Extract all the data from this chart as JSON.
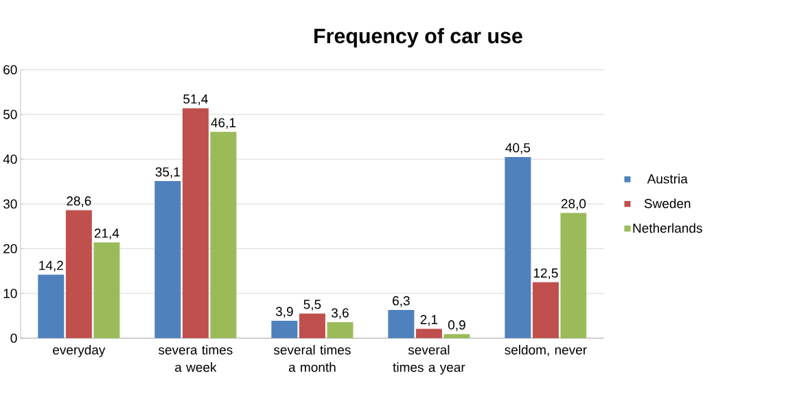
{
  "chart_data": {
    "type": "bar",
    "title": "Frequency of car use",
    "categories": [
      "everyday",
      "severa times a week",
      "several times a month",
      "several times a year",
      "seldom, never"
    ],
    "series": [
      {
        "name": "Austria",
        "color": "#4f81bd",
        "values": [
          14.2,
          35.1,
          3.9,
          6.3,
          40.5
        ],
        "value_labels": [
          "14,2",
          "35,1",
          "3,9",
          "6,3",
          "40,5"
        ]
      },
      {
        "name": "Sweden",
        "color": "#c0504d",
        "values": [
          28.6,
          51.4,
          5.5,
          2.1,
          12.5
        ],
        "value_labels": [
          "28,6",
          "51,4",
          "5,5",
          "2,1",
          "12,5"
        ]
      },
      {
        "name": "Netherlands",
        "color": "#9bbb59",
        "values": [
          21.4,
          46.1,
          3.6,
          0.9,
          28.0
        ],
        "value_labels": [
          "21,4",
          "46,1",
          "3,6",
          "0,9",
          "28,0"
        ]
      }
    ],
    "ylim": [
      0,
      60
    ],
    "yticks": [
      0,
      10,
      20,
      30,
      40,
      50,
      60
    ],
    "grid": "y",
    "legend": "right"
  }
}
